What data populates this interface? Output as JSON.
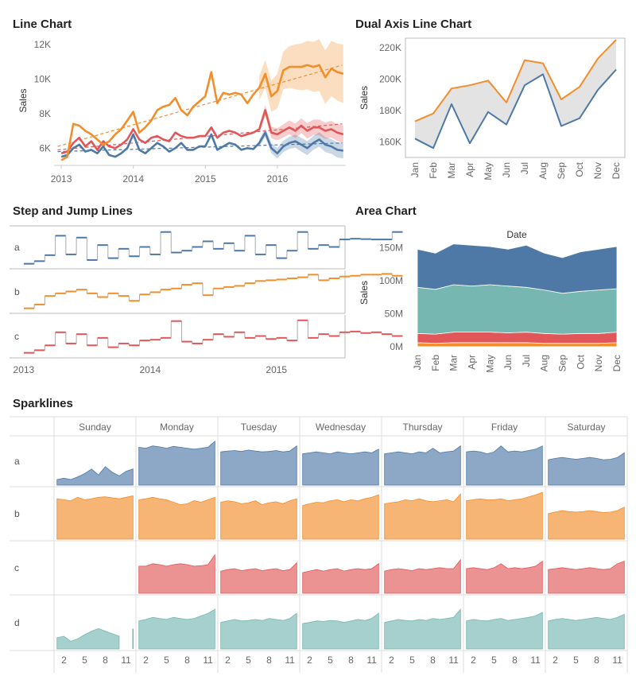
{
  "colors": {
    "blue": "#4e79a7",
    "orange": "#f28e2b",
    "red": "#e15759",
    "teal": "#76b7b2"
  },
  "chart_data": [
    {
      "id": "line",
      "type": "line",
      "title": "Line Chart",
      "ylabel": "Sales",
      "ylim": [
        5000,
        12500
      ],
      "yticks": [
        6000,
        8000,
        10000,
        12000
      ],
      "ytick_labels": [
        "6K",
        "8K",
        "10K",
        "12K"
      ],
      "xlim": [
        2012.9,
        2016.95
      ],
      "xticks": [
        2013,
        2014,
        2015,
        2016
      ],
      "xtick_labels": [
        "2013",
        "2014",
        "2015",
        "2016"
      ],
      "x_start": 2013.0,
      "x_step": 0.0833,
      "series": [
        {
          "key": "blue",
          "values": [
            5500,
            5600,
            6000,
            6200,
            5800,
            5900,
            5700,
            6100,
            5600,
            5500,
            5700,
            6000,
            6800,
            5900,
            5700,
            6000,
            6300,
            6100,
            5800,
            6000,
            6300,
            5900,
            5900,
            6100,
            6100,
            6800,
            5900,
            6100,
            6300,
            6200,
            5900,
            6000,
            5950,
            6300,
            6900,
            6000,
            5700,
            6100,
            6300,
            6400,
            6200,
            6000,
            6300,
            6500,
            6200,
            6100,
            5900,
            5850
          ],
          "band": [
            0,
            0,
            0,
            0,
            0,
            0,
            0,
            0,
            0,
            0,
            0,
            0,
            0,
            0,
            0,
            0,
            0,
            0,
            0,
            0,
            0,
            0,
            0,
            0,
            0,
            0,
            0,
            0,
            0,
            0,
            0,
            0,
            0,
            200,
            250,
            300,
            300,
            330,
            350,
            380,
            400,
            400,
            400,
            420,
            430,
            430,
            440,
            450
          ]
        },
        {
          "key": "red",
          "values": [
            5700,
            5800,
            6300,
            6600,
            6100,
            6400,
            5900,
            6400,
            6100,
            6000,
            6200,
            6500,
            7100,
            6500,
            6300,
            6600,
            6700,
            6500,
            6400,
            6900,
            6700,
            6600,
            6600,
            6700,
            6700,
            7200,
            6600,
            6900,
            7000,
            6900,
            6700,
            6800,
            6900,
            7100,
            8200,
            6900,
            6800,
            7000,
            7200,
            7000,
            7300,
            7000,
            7200,
            7200,
            7000,
            7100,
            6900,
            6800
          ],
          "band": [
            0,
            0,
            0,
            0,
            0,
            0,
            0,
            0,
            0,
            0,
            0,
            0,
            0,
            0,
            0,
            0,
            0,
            0,
            0,
            0,
            0,
            0,
            0,
            0,
            0,
            0,
            0,
            0,
            0,
            0,
            0,
            0,
            0,
            250,
            300,
            330,
            350,
            380,
            400,
            420,
            430,
            440,
            450,
            460,
            470,
            480,
            490,
            500
          ]
        },
        {
          "key": "orange",
          "values": [
            5300,
            5500,
            7400,
            7300,
            7000,
            6800,
            6500,
            6200,
            6400,
            6800,
            7100,
            7600,
            8100,
            6900,
            7200,
            7600,
            8200,
            8400,
            8500,
            8900,
            8200,
            7900,
            8400,
            8700,
            9000,
            10400,
            8600,
            9200,
            9100,
            9200,
            9100,
            8600,
            9100,
            9500,
            10300,
            9000,
            9300,
            10500,
            10700,
            10700,
            10700,
            10800,
            10700,
            10800,
            10100,
            10600,
            10400,
            10300
          ],
          "band": [
            0,
            0,
            0,
            0,
            0,
            0,
            0,
            0,
            0,
            0,
            0,
            0,
            0,
            0,
            0,
            0,
            0,
            0,
            0,
            0,
            0,
            0,
            0,
            0,
            0,
            0,
            0,
            0,
            0,
            0,
            0,
            0,
            0,
            700,
            800,
            900,
            1000,
            1100,
            1200,
            1300,
            1350,
            1400,
            1450,
            1500,
            1550,
            1600,
            1650,
            1700
          ]
        }
      ],
      "trends": [
        {
          "key": "blue",
          "from": [
            2012.95,
            5800
          ],
          "to": [
            2016.9,
            6300
          ]
        },
        {
          "key": "red",
          "from": [
            2012.95,
            5900
          ],
          "to": [
            2016.9,
            7400
          ]
        },
        {
          "key": "orange",
          "from": [
            2012.95,
            6100
          ],
          "to": [
            2016.9,
            10800
          ]
        }
      ]
    },
    {
      "id": "dual",
      "type": "line",
      "title": "Dual Axis Line Chart",
      "ylabel": "Sales",
      "ylim": [
        150000,
        226000
      ],
      "yticks": [
        160000,
        180000,
        200000,
        220000
      ],
      "ytick_labels": [
        "160K",
        "180K",
        "200K",
        "220K"
      ],
      "categories": [
        "Jan",
        "Feb",
        "Mar",
        "Apr",
        "May",
        "Jun",
        "Jul",
        "Aug",
        "Sep",
        "Oct",
        "Nov",
        "Dec"
      ],
      "series": [
        {
          "key": "orange",
          "values": [
            173000,
            178000,
            194000,
            196000,
            199000,
            185000,
            212000,
            210000,
            187000,
            195000,
            213000,
            225000
          ]
        },
        {
          "key": "blue",
          "values": [
            162000,
            156000,
            184000,
            159000,
            179000,
            171000,
            196000,
            203000,
            170000,
            175000,
            193000,
            206000
          ]
        }
      ]
    },
    {
      "id": "step",
      "type": "line",
      "title": "Step and Jump Lines",
      "rows": [
        "a",
        "b",
        "c"
      ],
      "xtick_labels": [
        "2013",
        "2014",
        "2015"
      ],
      "xticks": [
        2013,
        2014,
        2015
      ],
      "xlim": [
        2012.9,
        2015.53
      ],
      "x_start": 2013.0,
      "x_step": 0.0833,
      "series": [
        {
          "key": "blue",
          "values": [
            0.05,
            0.12,
            0.28,
            0.8,
            0.3,
            0.75,
            0.15,
            0.55,
            0.2,
            0.45,
            0.25,
            0.5,
            0.3,
            0.9,
            0.35,
            0.4,
            0.5,
            0.65,
            0.45,
            0.6,
            0.4,
            0.8,
            0.3,
            0.55,
            0.2,
            0.4,
            0.9,
            0.45,
            0.55,
            0.5,
            0.7,
            0.72,
            0.71,
            0.7,
            0.7,
            0.9
          ]
        },
        {
          "key": "orange",
          "values": [
            0.05,
            0.15,
            0.38,
            0.45,
            0.5,
            0.55,
            0.45,
            0.35,
            0.45,
            0.38,
            0.25,
            0.42,
            0.48,
            0.55,
            0.58,
            0.68,
            0.72,
            0.4,
            0.58,
            0.62,
            0.65,
            0.72,
            0.78,
            0.8,
            0.82,
            0.85,
            0.88,
            0.95,
            0.8,
            0.85,
            0.9,
            0.92,
            0.95,
            0.95,
            0.97,
            0.92
          ]
        },
        {
          "key": "red",
          "values": [
            0.05,
            0.12,
            0.25,
            0.6,
            0.3,
            0.55,
            0.25,
            0.45,
            0.2,
            0.3,
            0.25,
            0.38,
            0.4,
            0.45,
            0.9,
            0.35,
            0.3,
            0.4,
            0.55,
            0.48,
            0.6,
            0.45,
            0.5,
            0.42,
            0.45,
            0.38,
            0.92,
            0.45,
            0.55,
            0.5,
            0.6,
            0.62,
            0.58,
            0.6,
            0.55,
            0.5
          ]
        }
      ]
    },
    {
      "id": "area",
      "type": "area",
      "title": "Area Chart",
      "header": "Date",
      "ylabel": "Sales",
      "ylim": [
        -5000000,
        158000000
      ],
      "yticks": [
        0,
        50000000,
        100000000,
        150000000
      ],
      "ytick_labels": [
        "0M",
        "50M",
        "100M",
        "150M"
      ],
      "categories": [
        "Jan",
        "Feb",
        "Mar",
        "Apr",
        "May",
        "Jun",
        "Jul",
        "Aug",
        "Sep",
        "Oct",
        "Nov",
        "Dec"
      ],
      "stack": [
        {
          "key": "orange",
          "values": [
            6000000,
            5000000,
            6000000,
            6000000,
            6000000,
            6000000,
            6000000,
            5000000,
            5000000,
            5000000,
            5000000,
            6000000
          ]
        },
        {
          "key": "red",
          "values": [
            14000000,
            14000000,
            16000000,
            16000000,
            16000000,
            15000000,
            16000000,
            15000000,
            14000000,
            15000000,
            15000000,
            16000000
          ]
        },
        {
          "key": "teal",
          "values": [
            70000000,
            68000000,
            72000000,
            70000000,
            72000000,
            71000000,
            68000000,
            66000000,
            62000000,
            64000000,
            66000000,
            66000000
          ]
        },
        {
          "key": "blue",
          "values": [
            58000000,
            55000000,
            62000000,
            62000000,
            58000000,
            56000000,
            64000000,
            56000000,
            54000000,
            60000000,
            62000000,
            64000000
          ]
        }
      ]
    },
    {
      "id": "spark",
      "type": "area",
      "title": "Sparklines",
      "columns": [
        "Sunday",
        "Monday",
        "Tuesday",
        "Wednesday",
        "Thursday",
        "Friday",
        "Saturday"
      ],
      "rows": [
        "a",
        "b",
        "c",
        "d"
      ],
      "xtick_labels": [
        "2",
        "5",
        "8",
        "11"
      ],
      "xticks": [
        2,
        5,
        8,
        11
      ],
      "xlim": [
        0.8,
        12.2
      ],
      "ylim": [
        0,
        1
      ],
      "x": [
        1,
        2,
        3,
        4,
        5,
        6,
        7,
        8,
        9,
        10,
        11,
        12
      ],
      "row_data": {
        "a": [
          [
            0.12,
            0.15,
            0.12,
            0.18,
            0.25,
            0.35,
            0.22,
            0.4,
            0.28,
            0.2,
            0.3,
            0.35
          ],
          [
            0.82,
            0.8,
            0.85,
            0.83,
            0.8,
            0.84,
            0.82,
            0.8,
            0.78,
            0.8,
            0.82,
            0.95
          ],
          [
            0.72,
            0.74,
            0.75,
            0.73,
            0.76,
            0.74,
            0.72,
            0.73,
            0.75,
            0.72,
            0.74,
            0.85
          ],
          [
            0.68,
            0.7,
            0.72,
            0.7,
            0.68,
            0.72,
            0.7,
            0.68,
            0.7,
            0.72,
            0.7,
            0.78
          ],
          [
            0.68,
            0.7,
            0.72,
            0.7,
            0.68,
            0.72,
            0.7,
            0.8,
            0.7,
            0.72,
            0.74,
            0.85
          ],
          [
            0.72,
            0.74,
            0.72,
            0.68,
            0.72,
            0.85,
            0.72,
            0.74,
            0.72,
            0.75,
            0.78,
            0.85
          ],
          [
            0.55,
            0.58,
            0.6,
            0.58,
            0.56,
            0.58,
            0.6,
            0.58,
            0.55,
            0.56,
            0.6,
            0.7
          ]
        ],
        "b": [
          [
            0.82,
            0.8,
            0.78,
            0.85,
            0.8,
            0.82,
            0.85,
            0.86,
            0.84,
            0.82,
            0.85,
            0.88
          ],
          [
            0.8,
            0.82,
            0.85,
            0.82,
            0.8,
            0.75,
            0.7,
            0.72,
            0.78,
            0.75,
            0.8,
            0.85
          ],
          [
            0.75,
            0.78,
            0.76,
            0.72,
            0.74,
            0.78,
            0.7,
            0.74,
            0.76,
            0.72,
            0.78,
            0.82
          ],
          [
            0.68,
            0.72,
            0.75,
            0.74,
            0.78,
            0.8,
            0.76,
            0.8,
            0.78,
            0.82,
            0.85,
            0.9
          ],
          [
            0.72,
            0.74,
            0.76,
            0.8,
            0.78,
            0.82,
            0.78,
            0.76,
            0.78,
            0.8,
            0.76,
            0.92
          ],
          [
            0.78,
            0.8,
            0.82,
            0.8,
            0.8,
            0.82,
            0.78,
            0.8,
            0.82,
            0.86,
            0.9,
            0.95
          ],
          [
            0.52,
            0.55,
            0.58,
            0.56,
            0.55,
            0.56,
            0.58,
            0.56,
            0.54,
            0.55,
            0.58,
            0.65
          ]
        ],
        "c": [
          null,
          [
            0.55,
            0.55,
            0.6,
            0.58,
            0.55,
            0.58,
            0.6,
            0.58,
            0.55,
            0.56,
            0.58,
            0.78
          ],
          [
            0.45,
            0.48,
            0.5,
            0.46,
            0.48,
            0.5,
            0.46,
            0.48,
            0.5,
            0.46,
            0.48,
            0.62
          ],
          [
            0.42,
            0.45,
            0.48,
            0.45,
            0.48,
            0.5,
            0.45,
            0.48,
            0.5,
            0.48,
            0.5,
            0.6
          ],
          [
            0.45,
            0.48,
            0.5,
            0.48,
            0.46,
            0.5,
            0.48,
            0.5,
            0.52,
            0.5,
            0.5,
            0.68
          ],
          [
            0.5,
            0.52,
            0.5,
            0.48,
            0.52,
            0.6,
            0.5,
            0.52,
            0.5,
            0.52,
            0.55,
            0.65
          ],
          [
            0.48,
            0.5,
            0.52,
            0.5,
            0.48,
            0.5,
            0.52,
            0.5,
            0.48,
            0.5,
            0.6,
            0.65
          ]
        ],
        "d": [
          [
            0.22,
            0.25,
            0.15,
            0.2,
            0.28,
            0.35,
            0.4,
            0.35,
            0.3,
            0.25,
            null,
            0.4
          ],
          [
            0.55,
            0.58,
            0.62,
            0.6,
            0.58,
            0.62,
            0.6,
            0.58,
            0.6,
            0.65,
            0.7,
            0.78
          ],
          [
            0.52,
            0.55,
            0.58,
            0.55,
            0.56,
            0.58,
            0.56,
            0.6,
            0.58,
            0.56,
            0.6,
            0.7
          ],
          [
            0.5,
            0.52,
            0.55,
            0.54,
            0.56,
            0.55,
            0.52,
            0.55,
            0.58,
            0.56,
            0.6,
            0.7
          ],
          [
            0.52,
            0.55,
            0.58,
            0.56,
            0.55,
            0.58,
            0.56,
            0.6,
            0.58,
            0.6,
            0.62,
            0.78
          ],
          [
            0.55,
            0.58,
            0.56,
            0.55,
            0.58,
            0.6,
            0.56,
            0.58,
            0.6,
            0.62,
            0.65,
            0.72
          ],
          [
            0.55,
            0.58,
            0.6,
            0.58,
            0.56,
            0.58,
            0.6,
            0.62,
            0.6,
            0.58,
            0.62,
            0.68
          ]
        ]
      }
    }
  ]
}
